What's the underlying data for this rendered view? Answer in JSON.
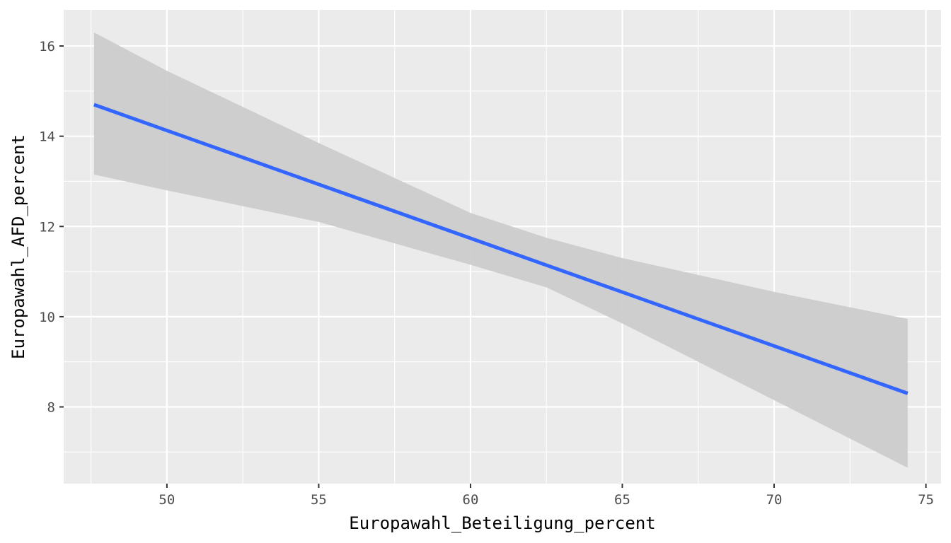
{
  "chart_data": {
    "type": "line",
    "xlabel": "Europawahl_Beteiligung_percent",
    "ylabel": "Europawahl_AFD_percent",
    "xlim": [
      46.6,
      75.5
    ],
    "ylim": [
      6.3,
      16.8
    ],
    "xticks": [
      50,
      55,
      60,
      65,
      70,
      75
    ],
    "yticks": [
      8,
      10,
      12,
      14,
      16
    ],
    "x_tick_labels": [
      "50",
      "55",
      "60",
      "65",
      "70",
      "75"
    ],
    "y_tick_labels": [
      "8",
      "10",
      "12",
      "14",
      "16"
    ],
    "grid": true,
    "series": [
      {
        "x": [
          47.6,
          74.4
        ],
        "y": [
          14.7,
          8.3
        ]
      }
    ],
    "confidence_band": {
      "x": [
        47.6,
        50,
        55,
        60,
        62.5,
        65,
        70,
        74.4
      ],
      "upper": [
        16.3,
        15.45,
        13.85,
        12.3,
        11.75,
        11.3,
        10.55,
        9.95
      ],
      "lower": [
        13.15,
        12.8,
        12.1,
        11.15,
        10.65,
        9.85,
        8.15,
        6.65
      ]
    },
    "colors": {
      "line": "#3366FF",
      "band": "#CCCCCC",
      "panel": "#EBEBEB",
      "grid": "#FFFFFF"
    }
  }
}
